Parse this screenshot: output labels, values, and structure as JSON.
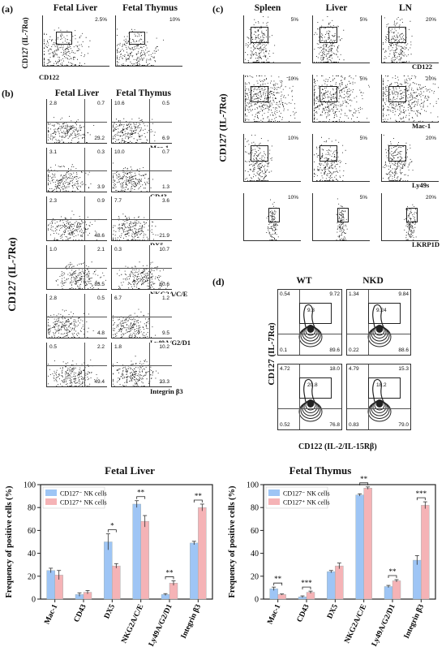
{
  "panels": {
    "a": {
      "label": "(a)",
      "col_titles": [
        "Fetal Liver",
        "Fetal Thymus"
      ],
      "ylabel": "CD127 (IL-7Rα)",
      "xlabel": "CD122",
      "percents": [
        "2.5%",
        "10%"
      ]
    },
    "b": {
      "label": "(b)",
      "col_titles": [
        "Fetal Liver",
        "Fetal Thymus"
      ],
      "ylabel": "CD127 (IL-7Rα)",
      "rows": [
        {
          "marker": "Mac-1",
          "liver": [
            "2.8",
            "0.7",
            "23.2"
          ],
          "thymus": [
            "10.6",
            "0.5",
            "6.9"
          ]
        },
        {
          "marker": "CD43",
          "liver": [
            "3.1",
            "0.3",
            "3.9"
          ],
          "thymus": [
            "10.0",
            "0.7",
            "1.3"
          ]
        },
        {
          "marker": "DX5",
          "liver": [
            "2.3",
            "0.9",
            "48.6"
          ],
          "thymus": [
            "7.7",
            "3.6",
            "21.9"
          ]
        },
        {
          "marker": "NKG2A/C/E",
          "liver": [
            "1.0",
            "2.1",
            "83.5"
          ],
          "thymus": [
            "0.3",
            "10.7",
            "80.6"
          ]
        },
        {
          "marker": "Ly49A/G2/D1",
          "liver": [
            "2.8",
            "0.5",
            "4.8"
          ],
          "thymus": [
            "6.7",
            "1.2",
            "9.5"
          ]
        },
        {
          "marker": "Integrin β3",
          "liver": [
            "0.5",
            "2.2",
            "49.4"
          ],
          "thymus": [
            "1.8",
            "10.2",
            "33.3"
          ]
        }
      ]
    },
    "c": {
      "label": "(c)",
      "col_titles": [
        "Spleen",
        "Liver",
        "LN"
      ],
      "ylabel": "CD127 (IL-7Rα)",
      "rows": [
        {
          "marker": "CD122",
          "percents": [
            "5%",
            "5%",
            "20%"
          ]
        },
        {
          "marker": "Mac-1",
          "percents": [
            "10%",
            "5%",
            "20%"
          ]
        },
        {
          "marker": "Ly49s",
          "percents": [
            "10%",
            "5%",
            "20%"
          ]
        },
        {
          "marker": "LKRP1D",
          "percents": [
            "10%",
            "5%",
            "20%"
          ]
        }
      ]
    },
    "d": {
      "label": "(d)",
      "col_titles": [
        "WT",
        "NKD"
      ],
      "ylabel": "CD127 (IL-7Rα)",
      "xlabel": "CD122 (IL-2/IL-15Rβ)",
      "plots": [
        {
          "ul": "0.54",
          "ur": "9.72",
          "gate": "9.3",
          "ll": "0.1",
          "lr": "89.6"
        },
        {
          "ul": "1.34",
          "ur": "9.84",
          "gate": "9.24",
          "ll": "0.22",
          "lr": "88.6"
        },
        {
          "ul": "4.72",
          "ur": "18.0",
          "gate": "20.8",
          "ll": "0.52",
          "lr": "76.8"
        },
        {
          "ul": "4.79",
          "ur": "15.3",
          "gate": "18.2",
          "ll": "0.83",
          "lr": "79.0"
        }
      ]
    }
  },
  "chart_data": [
    {
      "type": "bar",
      "title": "Fetal Liver",
      "ylabel": "Frequency of positive cells (%)",
      "ylim": [
        0,
        100
      ],
      "yticks": [
        0,
        20,
        40,
        60,
        80,
        100
      ],
      "categories": [
        "Mac-1",
        "CD43",
        "DX5",
        "NKG2A/C/E",
        "Ly49A/G2/D1",
        "Integrin β3"
      ],
      "series": [
        {
          "name": "CD127⁻ NK cells",
          "color": "#9ec5f5",
          "values": [
            25,
            4,
            50,
            83,
            4,
            49
          ],
          "errors": [
            2,
            1.5,
            7,
            3,
            0.8,
            1.5
          ]
        },
        {
          "name": "CD127⁺ NK cells",
          "color": "#f5b3b6",
          "values": [
            21,
            6,
            29,
            68,
            14,
            80
          ],
          "errors": [
            4,
            1.5,
            2,
            5,
            2,
            3
          ]
        }
      ],
      "significance": [
        "",
        "",
        "*",
        "**",
        "**",
        "**"
      ],
      "legend": "top-left"
    },
    {
      "type": "bar",
      "title": "Fetal Thymus",
      "ylabel": "Frequency of positive cells (%)",
      "ylim": [
        0,
        100
      ],
      "yticks": [
        0,
        20,
        40,
        60,
        80,
        100
      ],
      "categories": [
        "Mac-1",
        "CD43",
        "DX5",
        "NKG2A/C/E",
        "Ly49A/G2/D1",
        "Integrin β3"
      ],
      "series": [
        {
          "name": "CD127⁻ NK cells",
          "color": "#9ec5f5",
          "values": [
            9,
            2,
            24,
            91,
            11,
            34
          ],
          "errors": [
            1.5,
            0.8,
            1,
            1,
            1,
            4
          ]
        },
        {
          "name": "CD127⁺ NK cells",
          "color": "#f5b3b6",
          "values": [
            4,
            6,
            29,
            97,
            16,
            82
          ],
          "errors": [
            0.5,
            1,
            2.5,
            1,
            1,
            3
          ]
        }
      ],
      "significance": [
        "**",
        "***",
        "",
        "**",
        "**",
        "***"
      ],
      "legend": "top-left"
    }
  ]
}
